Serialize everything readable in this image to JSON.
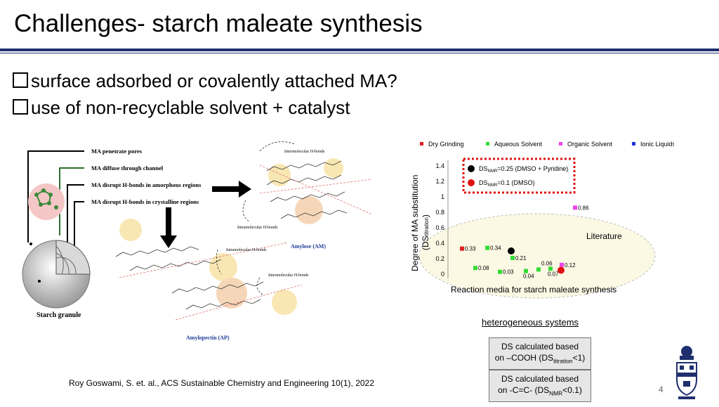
{
  "slide": {
    "title": "Challenges- starch maleate synthesis",
    "bullets": [
      "surface adsorbed or covalently attached MA?",
      "use of non-recyclable solvent + catalyst"
    ],
    "citation": "Roy Goswami, S. et. al., ACS Sustainable Chemistry and Engineering 10(1), 2022",
    "page_number": "4"
  },
  "figure": {
    "mechanisms": [
      "MA penetrate pores",
      "MA diffuse through channel",
      "MA disrupt H-bonds in amorphous regions",
      "MA disrupt H-bonds in crystalline regions"
    ],
    "granule_label": "Starch granule",
    "amylose_label": "Amylose (AM)",
    "amylopectin_label": "Amylopectin (AP)",
    "hbond_labels": [
      "Intermolecular H-bonds",
      "Intramolecular H-bonds",
      "Intramolecular H-bonds",
      "Intermolecular H-bonds"
    ]
  },
  "chart_data": {
    "type": "scatter",
    "legend": [
      {
        "name": "Dry Grinding",
        "color": "#e02020"
      },
      {
        "name": "Aqueous Solvent",
        "color": "#33dd33"
      },
      {
        "name": "Organic Solvent",
        "color": "#ee44ee"
      },
      {
        "name": "Ionic Liquids",
        "color": "#2233dd"
      }
    ],
    "legend_placement": "top",
    "ylabel_main": "Degree of MA substitution",
    "ylabel_sub_prefix": "(DS",
    "ylabel_sub": "titration",
    "ylabel_sub_suffix": ")",
    "xlabel": "Reaction media for starch maleate synthesis",
    "ylim": [
      0,
      1.4
    ],
    "yticks": [
      "0",
      "0.2",
      "0.4",
      "0.6",
      "0.8",
      "1",
      "1.2",
      "1.4"
    ],
    "points": [
      {
        "x": 1,
        "y": 0.33,
        "label": "0.33",
        "series": "Dry Grinding"
      },
      {
        "x": 2,
        "y": 0.08,
        "label": "0.08",
        "series": "Aqueous Solvent"
      },
      {
        "x": 3,
        "y": 0.34,
        "label": "0.34",
        "series": "Aqueous Solvent"
      },
      {
        "x": 4,
        "y": 0.03,
        "label": "0.03",
        "series": "Aqueous Solvent"
      },
      {
        "x": 5,
        "y": 0.21,
        "label": "0.21",
        "series": "Aqueous Solvent"
      },
      {
        "x": 6,
        "y": 0.04,
        "label": "0.04",
        "series": "Aqueous Solvent"
      },
      {
        "x": 7,
        "y": 0.06,
        "label": "0.06",
        "series": "Aqueous Solvent"
      },
      {
        "x": 8,
        "y": 0.07,
        "label": "0.07",
        "series": "Aqueous Solvent"
      },
      {
        "x": 9,
        "y": 0.12,
        "label": "0.12",
        "series": "Organic Solvent"
      },
      {
        "x": 9,
        "y": 0.86,
        "label": "0.86",
        "series": "Organic Solvent"
      }
    ],
    "highlight_points": [
      {
        "x": 6,
        "y": 0.3,
        "name_prefix": "DS",
        "name_sub": "NMR",
        "name_suffix": "=0.25 (DMSO + Pyridine)",
        "color": "#000000"
      },
      {
        "x": 10,
        "y": 0.05,
        "name_prefix": "DS",
        "name_sub": "NMR",
        "name_suffix": "=0.1 (DMSO)",
        "color": "#e01010"
      }
    ],
    "region_label": "Literature"
  },
  "notes": {
    "heterogeneous": "heterogeneous systems",
    "box1_line1": "DS calculated based",
    "box1_line2_prefix": "on –COOH (DS",
    "box1_sub": "titration",
    "box1_line2_suffix": "<1)",
    "box2_line1": "DS calculated based",
    "box2_line2_prefix": "on -C=C- (DS",
    "box2_sub": "NMR",
    "box2_line2_suffix": "<0.1)"
  }
}
